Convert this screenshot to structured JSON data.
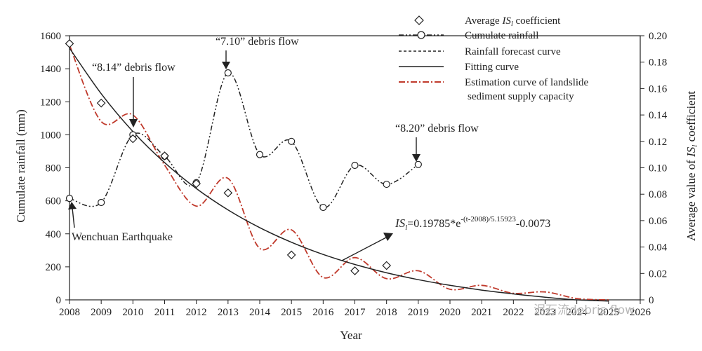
{
  "chart_data": {
    "type": "line",
    "xlabel": "Year",
    "ylabel": "Cumulate rainfall (mm)",
    "y2label_pre": "Average value of ",
    "y2label_var": "IS",
    "y2label_sub": "l",
    "y2label_post": " coefficient",
    "x_ticks": [
      "2008",
      "2009",
      "2010",
      "2011",
      "2012",
      "2013",
      "2014",
      "2015",
      "2016",
      "2017",
      "2018",
      "2019",
      "2020",
      "2021",
      "2022",
      "2023",
      "2024",
      "2025",
      "2026"
    ],
    "y_ticks": [
      "0",
      "200",
      "400",
      "600",
      "800",
      "1000",
      "1200",
      "1400",
      "1600"
    ],
    "y2_ticks": [
      "0",
      "0.02",
      "0.04",
      "0.06",
      "0.08",
      "0.10",
      "0.12",
      "0.14",
      "0.16",
      "0.18",
      "0.20"
    ],
    "xlim": [
      2008,
      2026
    ],
    "ylim": [
      0,
      1600
    ],
    "y2lim": [
      0,
      0.2
    ],
    "series": [
      {
        "name": "Average ISl coefficient",
        "marker": "diamond",
        "axis": "right",
        "x": [
          2008,
          2009,
          2010,
          2011,
          2012,
          2013,
          2015,
          2017,
          2018
        ],
        "values": [
          0.194,
          0.149,
          0.122,
          0.109,
          0.088,
          0.081,
          0.034,
          0.022,
          0.026
        ]
      },
      {
        "name": "Cumulate rainfall",
        "marker": "circle",
        "axis": "left",
        "color": "#222222",
        "x": [
          2008,
          2009,
          2010,
          2011,
          2012,
          2013,
          2014,
          2015,
          2016,
          2017,
          2018,
          2019
        ],
        "values": [
          615,
          590,
          1000,
          870,
          710,
          1375,
          880,
          960,
          560,
          815,
          700,
          820
        ]
      },
      {
        "name": "Fitting curve",
        "axis": "right",
        "color": "#222222",
        "x": [
          2008,
          2009,
          2010,
          2011,
          2012,
          2013,
          2014,
          2015,
          2016,
          2017,
          2018,
          2019,
          2020,
          2021,
          2022,
          2023,
          2024,
          2025
        ],
        "values": [
          0.1906,
          0.1561,
          0.1275,
          0.1039,
          0.0843,
          0.0681,
          0.0547,
          0.0436,
          0.0344,
          0.0268,
          0.0205,
          0.0153,
          0.011,
          0.0074,
          0.0045,
          0.002,
          0.0,
          -0.0017
        ]
      },
      {
        "name": "Estimation curve of landslide sediment supply capacity",
        "axis": "right",
        "color": "#c0392b",
        "x": [
          2008,
          2009,
          2010,
          2011,
          2012,
          2013,
          2014,
          2015,
          2016,
          2017,
          2018,
          2019,
          2020,
          2021,
          2022,
          2023,
          2024,
          2025
        ],
        "values": [
          0.193,
          0.135,
          0.14,
          0.102,
          0.071,
          0.092,
          0.039,
          0.053,
          0.017,
          0.032,
          0.016,
          0.022,
          0.008,
          0.011,
          0.005,
          0.006,
          0.001,
          0.0
        ]
      }
    ],
    "legend": [
      {
        "label_pre": "Average ",
        "label_var": "IS",
        "label_sub": "l",
        "label_post": " coefficient",
        "style": "diamond"
      },
      {
        "label": "Cumulate rainfall",
        "style": "dashdotdot-circle"
      },
      {
        "label": "Rainfall forecast curve",
        "style": "dashed"
      },
      {
        "label": "Fitting curve",
        "style": "solid"
      },
      {
        "label": "Estimation curve of landslide",
        "label2": "sediment supply capacity",
        "style": "red-dashdot"
      }
    ],
    "legend_position": "top-right",
    "annotations": {
      "ann_814": "“8.14” debris flow",
      "ann_710": "“7.10” debris flow",
      "ann_820": "“8.20” debris flow",
      "ann_wenchuan": "Wenchuan Earthquake",
      "formula_lhs_var": "IS",
      "formula_lhs_sub": "l",
      "formula_eq": "=0.19785*e",
      "formula_exp": "-(t-2008)/5.15923",
      "formula_tail": "-0.0073"
    },
    "watermark": "泥石流debris flow"
  }
}
